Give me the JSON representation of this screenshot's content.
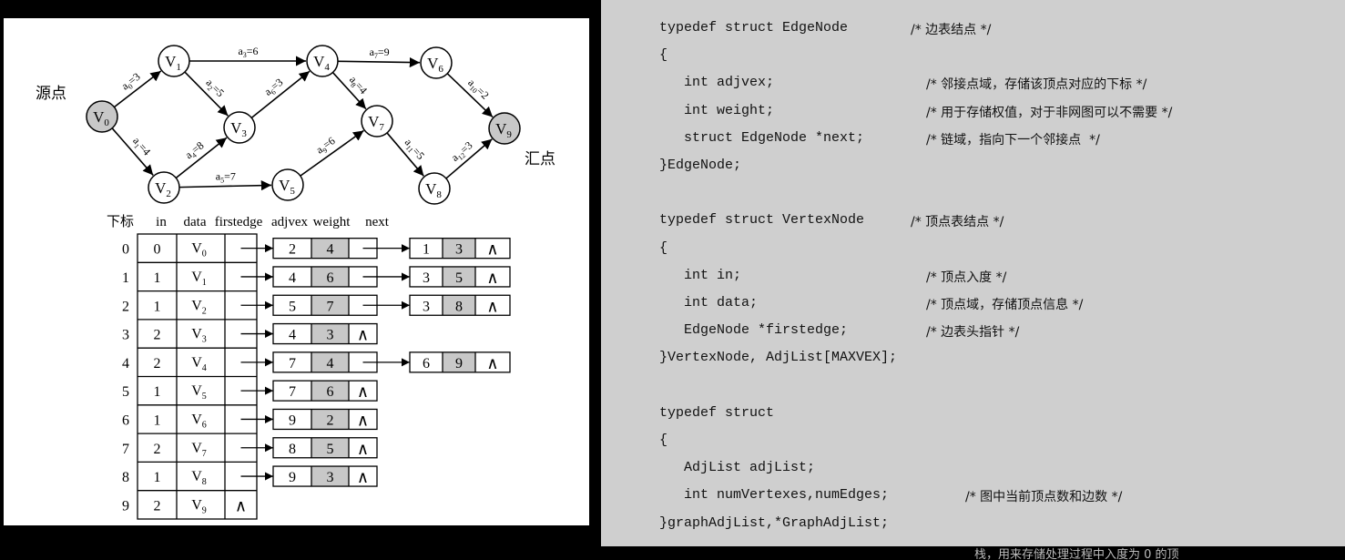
{
  "graph": {
    "source_label": "源点",
    "sink_label": "汇点",
    "vertices": [
      {
        "base": "V",
        "sub": "0",
        "fill": "#c8c8c8"
      },
      {
        "base": "V",
        "sub": "1",
        "fill": "#ffffff"
      },
      {
        "base": "V",
        "sub": "2",
        "fill": "#ffffff"
      },
      {
        "base": "V",
        "sub": "3",
        "fill": "#ffffff"
      },
      {
        "base": "V",
        "sub": "4",
        "fill": "#ffffff"
      },
      {
        "base": "V",
        "sub": "5",
        "fill": "#ffffff"
      },
      {
        "base": "V",
        "sub": "6",
        "fill": "#ffffff"
      },
      {
        "base": "V",
        "sub": "7",
        "fill": "#ffffff"
      },
      {
        "base": "V",
        "sub": "8",
        "fill": "#ffffff"
      },
      {
        "base": "V",
        "sub": "9",
        "fill": "#c8c8c8"
      }
    ],
    "edges": [
      {
        "from": 0,
        "to": 1,
        "name": "a",
        "sub": "0",
        "weight": "=3"
      },
      {
        "from": 0,
        "to": 2,
        "name": "a",
        "sub": "1",
        "weight": "=4"
      },
      {
        "from": 1,
        "to": 3,
        "name": "a",
        "sub": "2",
        "weight": "=5"
      },
      {
        "from": 1,
        "to": 4,
        "name": "a",
        "sub": "3",
        "weight": "=6"
      },
      {
        "from": 2,
        "to": 3,
        "name": "a",
        "sub": "4",
        "weight": "=8"
      },
      {
        "from": 2,
        "to": 5,
        "name": "a",
        "sub": "5",
        "weight": "=7"
      },
      {
        "from": 3,
        "to": 4,
        "name": "a",
        "sub": "6",
        "weight": "=3"
      },
      {
        "from": 4,
        "to": 6,
        "name": "a",
        "sub": "7",
        "weight": "=9"
      },
      {
        "from": 4,
        "to": 7,
        "name": "a",
        "sub": "8",
        "weight": "=4"
      },
      {
        "from": 5,
        "to": 7,
        "name": "a",
        "sub": "9",
        "weight": "=6"
      },
      {
        "from": 6,
        "to": 9,
        "name": "a",
        "sub": "10",
        "weight": "=2"
      },
      {
        "from": 7,
        "to": 8,
        "name": "a",
        "sub": "11",
        "weight": "=5"
      },
      {
        "from": 8,
        "to": 9,
        "name": "a",
        "sub": "12",
        "weight": "=3"
      }
    ]
  },
  "adjlist": {
    "headers": [
      "下标",
      "in",
      "data",
      "firstedge",
      "adjvex",
      "weight",
      "next"
    ],
    "null_symbol": "∧",
    "rows": [
      {
        "index": "0",
        "in": "0",
        "data": "V",
        "sub": "0",
        "nodes": [
          [
            "2",
            "4"
          ],
          [
            "1",
            "3"
          ]
        ]
      },
      {
        "index": "1",
        "in": "1",
        "data": "V",
        "sub": "1",
        "nodes": [
          [
            "4",
            "6"
          ],
          [
            "3",
            "5"
          ]
        ]
      },
      {
        "index": "2",
        "in": "1",
        "data": "V",
        "sub": "2",
        "nodes": [
          [
            "5",
            "7"
          ],
          [
            "3",
            "8"
          ]
        ]
      },
      {
        "index": "3",
        "in": "2",
        "data": "V",
        "sub": "3",
        "nodes": [
          [
            "4",
            "3"
          ]
        ]
      },
      {
        "index": "4",
        "in": "2",
        "data": "V",
        "sub": "4",
        "nodes": [
          [
            "7",
            "4"
          ],
          [
            "6",
            "9"
          ]
        ]
      },
      {
        "index": "5",
        "in": "1",
        "data": "V",
        "sub": "5",
        "nodes": [
          [
            "7",
            "6"
          ]
        ]
      },
      {
        "index": "6",
        "in": "1",
        "data": "V",
        "sub": "6",
        "nodes": [
          [
            "9",
            "2"
          ]
        ]
      },
      {
        "index": "7",
        "in": "2",
        "data": "V",
        "sub": "7",
        "nodes": [
          [
            "8",
            "5"
          ]
        ]
      },
      {
        "index": "8",
        "in": "1",
        "data": "V",
        "sub": "8",
        "nodes": [
          [
            "9",
            "3"
          ]
        ]
      },
      {
        "index": "9",
        "in": "2",
        "data": "V",
        "sub": "9",
        "nodes": []
      }
    ]
  },
  "code": {
    "lines": [
      {
        "code": "typedef struct EdgeNode",
        "comment": "/* 边表结点 */"
      },
      {
        "code": "{",
        "comment": ""
      },
      {
        "code": "   int adjvex;",
        "comment": "/* 邻接点域，存储该顶点对应的下标 */"
      },
      {
        "code": "   int weight;",
        "comment": "/* 用于存储权值，对于非网图可以不需要 */"
      },
      {
        "code": "   struct EdgeNode *next;",
        "comment": "/* 链域，指向下一个邻接点  */"
      },
      {
        "code": "}EdgeNode;",
        "comment": ""
      },
      {
        "code": "",
        "comment": ""
      },
      {
        "code": "typedef struct VertexNode",
        "comment": "/* 顶点表结点 */"
      },
      {
        "code": "{",
        "comment": ""
      },
      {
        "code": "   int in;",
        "comment": "/* 顶点入度 */"
      },
      {
        "code": "   int data;",
        "comment": "/* 顶点域，存储顶点信息 */"
      },
      {
        "code": "   EdgeNode *firstedge;",
        "comment": "/* 边表头指针 */"
      },
      {
        "code": "}VertexNode, AdjList[MAXVEX];",
        "comment": ""
      },
      {
        "code": "",
        "comment": ""
      },
      {
        "code": "typedef struct",
        "comment": ""
      },
      {
        "code": "{",
        "comment": ""
      },
      {
        "code": "   AdjList adjList;",
        "comment": ""
      },
      {
        "code": "   int numVertexes,numEdges;",
        "comment": "/* 图中当前顶点数和边数 */"
      },
      {
        "code": "}graphAdjList,*GraphAdjList;",
        "comment": ""
      }
    ],
    "tail_text": "栈，用来存储处理过程中入度为 0 的顶"
  },
  "colors": {
    "shade": "#c8c8c8",
    "panel": "#cfcfcf"
  }
}
